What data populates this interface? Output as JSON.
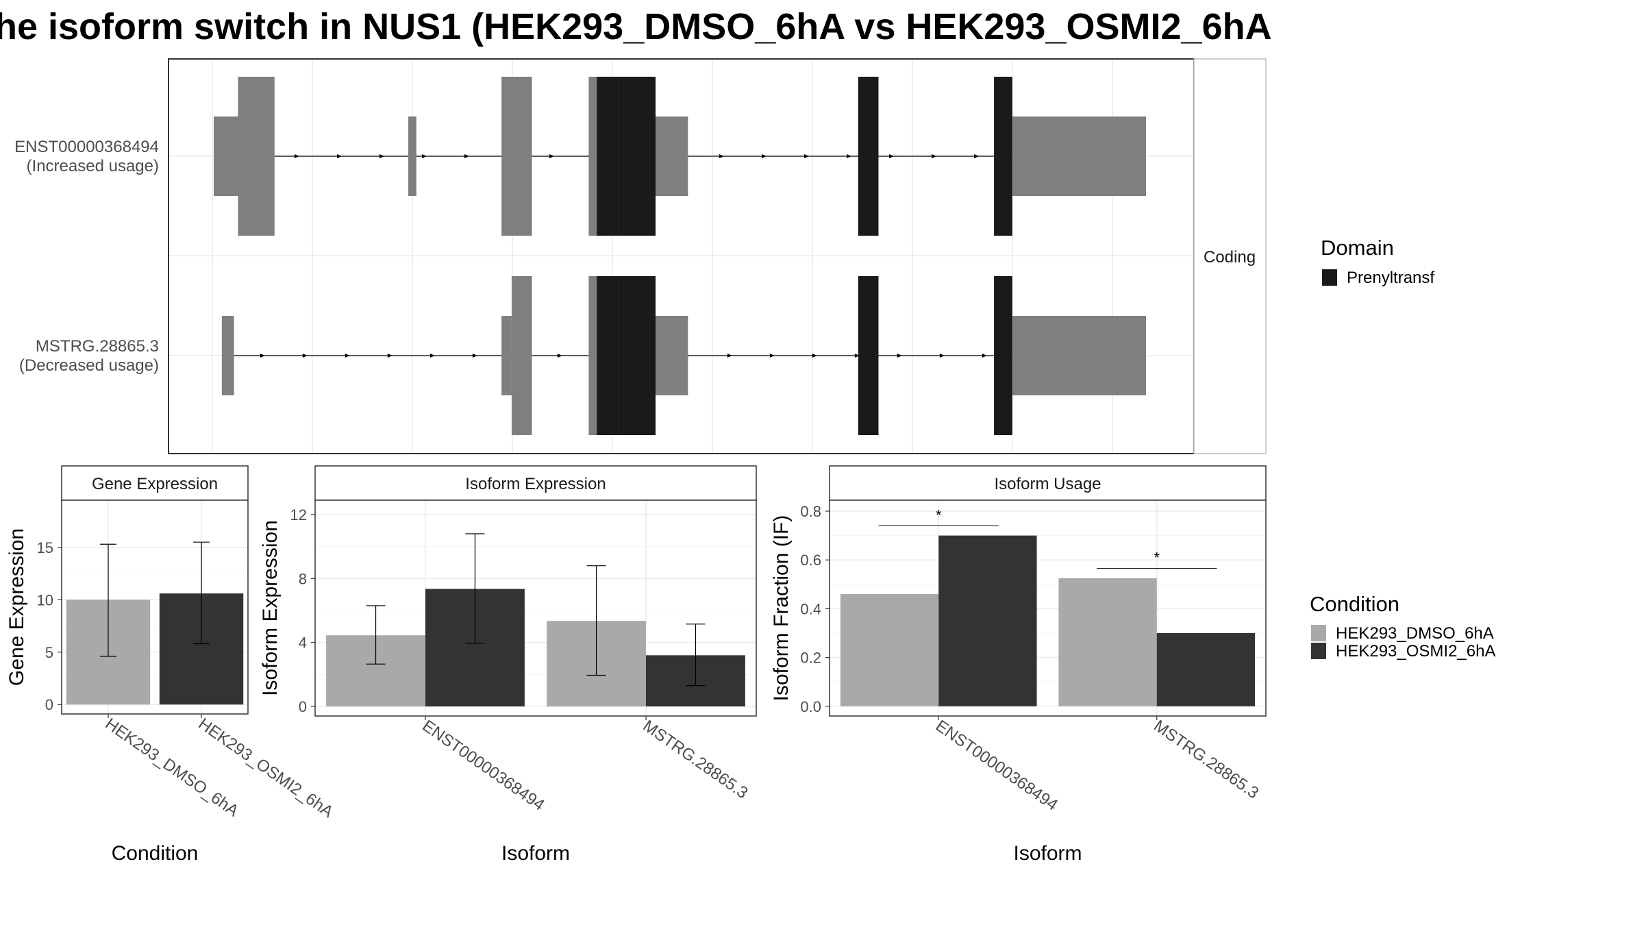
{
  "title": "he isoform switch in NUS1 (HEK293_DMSO_6hA vs HEK293_OSMI2_6hA",
  "colors": {
    "exon_utr": "#7f7f7f",
    "domain": "#1a1a1a",
    "dmso": "#a9a9a9",
    "osmi2": "#333333",
    "panel_border": "#333333",
    "grid": "#ebebeb",
    "strip_fill": "#ffffff"
  },
  "chart_data": [
    {
      "type": "gene_structure",
      "transcripts": [
        {
          "id": "ENST00000368494",
          "label_line1": "ENST00000368494",
          "label_line2": "(Increased usage)",
          "utr": [
            [
              0.0,
              0.12
            ],
            [
              0.96,
              1.0
            ],
            [
              2.16,
              2.34
            ]
          ],
          "cds": [
            [
              0.12,
              0.3
            ],
            [
              1.42,
              1.57
            ],
            [
              1.85,
              2.0
            ],
            [
              2.0,
              2.18
            ],
            [
              3.18,
              3.28
            ],
            [
              3.85,
              3.94
            ]
          ],
          "domain": [
            [
              1.89,
              2.0
            ],
            [
              2.0,
              2.18
            ],
            [
              3.18,
              3.28
            ],
            [
              3.85,
              3.94
            ]
          ],
          "utr3": [
            [
              3.94,
              4.6
            ]
          ]
        },
        {
          "id": "MSTRG.28865.3",
          "label_line1": "MSTRG.28865.3",
          "label_line2": "(Decreased usage)",
          "utr": [
            [
              0.04,
              0.1
            ],
            [
              1.42,
              1.47
            ],
            [
              2.16,
              2.34
            ]
          ],
          "cds": [
            [
              1.47,
              1.57
            ],
            [
              1.85,
              2.0
            ],
            [
              2.0,
              2.18
            ],
            [
              3.18,
              3.28
            ],
            [
              3.85,
              3.94
            ]
          ],
          "domain": [
            [
              1.89,
              2.0
            ],
            [
              2.0,
              2.18
            ],
            [
              3.18,
              3.28
            ],
            [
              3.85,
              3.94
            ]
          ],
          "utr3": [
            [
              3.94,
              4.6
            ]
          ]
        }
      ],
      "facet_label": "Coding",
      "legend_title": "Domain",
      "legend_items": [
        "Prenyltransf"
      ]
    },
    {
      "type": "bar",
      "strip": "Gene Expression",
      "xlabel": "Condition",
      "ylabel": "Gene Expression",
      "categories": [
        "HEK293_DMSO_6hA",
        "HEK293_OSMI2_6hA"
      ],
      "values": [
        10.0,
        10.6
      ],
      "err_low": [
        4.6,
        5.8
      ],
      "err_high": [
        15.3,
        15.5
      ],
      "ylim": [
        -0.9,
        19.5
      ],
      "yticks": [
        0,
        5,
        10,
        15
      ]
    },
    {
      "type": "bar",
      "strip": "Isoform Expression",
      "xlabel": "Isoform",
      "ylabel": "Isoform Expression",
      "categories": [
        "ENST00000368494",
        "MSTRG.28865.3"
      ],
      "series": [
        {
          "name": "HEK293_DMSO_6hA",
          "values": [
            4.45,
            5.35
          ],
          "err_low": [
            2.65,
            1.95
          ],
          "err_high": [
            6.3,
            8.8
          ]
        },
        {
          "name": "HEK293_OSMI2_6hA",
          "values": [
            7.35,
            3.2
          ],
          "err_low": [
            3.95,
            1.3
          ],
          "err_high": [
            10.8,
            5.15
          ]
        }
      ],
      "ylim": [
        -0.6,
        12.9
      ],
      "yticks": [
        0,
        4,
        8,
        12
      ]
    },
    {
      "type": "bar",
      "strip": "Isoform Usage",
      "xlabel": "Isoform",
      "ylabel": "Isoform Fraction (IF)",
      "categories": [
        "ENST00000368494",
        "MSTRG.28865.3"
      ],
      "series": [
        {
          "name": "HEK293_DMSO_6hA",
          "values": [
            0.46,
            0.525
          ]
        },
        {
          "name": "HEK293_OSMI2_6hA",
          "values": [
            0.7,
            0.3
          ]
        }
      ],
      "significance": [
        "*",
        "*"
      ],
      "sig_y": [
        0.74,
        0.565
      ],
      "ylim": [
        -0.04,
        0.845
      ],
      "yticks": [
        "0.0",
        "0.2",
        "0.4",
        "0.6",
        "0.8"
      ]
    }
  ],
  "condition_legend": {
    "title": "Condition",
    "items": [
      "HEK293_DMSO_6hA",
      "HEK293_OSMI2_6hA"
    ]
  }
}
